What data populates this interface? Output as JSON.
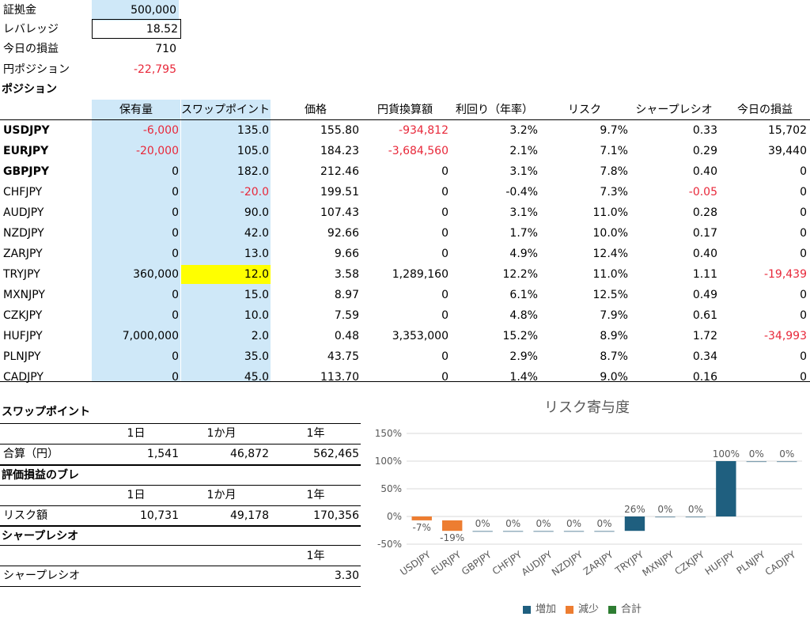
{
  "params": [
    {
      "label": "証拠金",
      "value": "500,000",
      "style": "blue"
    },
    {
      "label": "レバレッジ",
      "value": "18.52",
      "style": "box"
    },
    {
      "label": "今日の損益",
      "value": "710",
      "style": ""
    },
    {
      "label": "円ポジション",
      "value": "-22,795",
      "style": "red"
    }
  ],
  "position_title": "ポジション",
  "table": {
    "headers": [
      "保有量",
      "スワップポイント",
      "価格",
      "円貨換算額",
      "利回り（年率）",
      "リスク",
      "シャープレシオ",
      "今日の損益"
    ],
    "rows": [
      {
        "pair": "USDJPY",
        "bold": true,
        "qty": "-6,000",
        "qty_red": true,
        "swap": "135.0",
        "swap_red": false,
        "price": "155.80",
        "yen": "-934,812",
        "yen_red": true,
        "yield": "3.2%",
        "risk": "9.7%",
        "sharpe": "0.33",
        "sharpe_red": false,
        "pl": "15,702",
        "pl_red": false
      },
      {
        "pair": "EURJPY",
        "bold": true,
        "qty": "-20,000",
        "qty_red": true,
        "swap": "105.0",
        "swap_red": false,
        "price": "184.23",
        "yen": "-3,684,560",
        "yen_red": true,
        "yield": "2.1%",
        "risk": "7.1%",
        "sharpe": "0.29",
        "sharpe_red": false,
        "pl": "39,440",
        "pl_red": false
      },
      {
        "pair": "GBPJPY",
        "bold": true,
        "qty": "0",
        "qty_red": false,
        "swap": "182.0",
        "swap_red": false,
        "price": "212.46",
        "yen": "0",
        "yen_red": false,
        "yield": "3.1%",
        "risk": "7.8%",
        "sharpe": "0.40",
        "sharpe_red": false,
        "pl": "0",
        "pl_red": false
      },
      {
        "pair": "CHFJPY",
        "bold": false,
        "qty": "0",
        "qty_red": false,
        "swap": "-20.0",
        "swap_red": true,
        "price": "199.51",
        "yen": "0",
        "yen_red": false,
        "yield": "-0.4%",
        "risk": "7.3%",
        "sharpe": "-0.05",
        "sharpe_red": true,
        "pl": "0",
        "pl_red": false
      },
      {
        "pair": "AUDJPY",
        "bold": false,
        "qty": "0",
        "qty_red": false,
        "swap": "90.0",
        "swap_red": false,
        "price": "107.43",
        "yen": "0",
        "yen_red": false,
        "yield": "3.1%",
        "risk": "11.0%",
        "sharpe": "0.28",
        "sharpe_red": false,
        "pl": "0",
        "pl_red": false
      },
      {
        "pair": "NZDJPY",
        "bold": false,
        "qty": "0",
        "qty_red": false,
        "swap": "42.0",
        "swap_red": false,
        "price": "92.66",
        "yen": "0",
        "yen_red": false,
        "yield": "1.7%",
        "risk": "10.0%",
        "sharpe": "0.17",
        "sharpe_red": false,
        "pl": "0",
        "pl_red": false
      },
      {
        "pair": "ZARJPY",
        "bold": false,
        "qty": "0",
        "qty_red": false,
        "swap": "13.0",
        "swap_red": false,
        "price": "9.66",
        "yen": "0",
        "yen_red": false,
        "yield": "4.9%",
        "risk": "12.4%",
        "sharpe": "0.40",
        "sharpe_red": false,
        "pl": "0",
        "pl_red": false
      },
      {
        "pair": "TRYJPY",
        "bold": false,
        "qty": "360,000",
        "qty_red": false,
        "swap": "12.0",
        "swap_red": false,
        "swap_yellow": true,
        "price": "3.58",
        "yen": "1,289,160",
        "yen_red": false,
        "yield": "12.2%",
        "risk": "11.0%",
        "sharpe": "1.11",
        "sharpe_red": false,
        "pl": "-19,439",
        "pl_red": true
      },
      {
        "pair": "MXNJPY",
        "bold": false,
        "qty": "0",
        "qty_red": false,
        "swap": "15.0",
        "swap_red": false,
        "price": "8.97",
        "yen": "0",
        "yen_red": false,
        "yield": "6.1%",
        "risk": "12.5%",
        "sharpe": "0.49",
        "sharpe_red": false,
        "pl": "0",
        "pl_red": false
      },
      {
        "pair": "CZKJPY",
        "bold": false,
        "qty": "0",
        "qty_red": false,
        "swap": "10.0",
        "swap_red": false,
        "price": "7.59",
        "yen": "0",
        "yen_red": false,
        "yield": "4.8%",
        "risk": "7.9%",
        "sharpe": "0.61",
        "sharpe_red": false,
        "pl": "0",
        "pl_red": false
      },
      {
        "pair": "HUFJPY",
        "bold": false,
        "qty": "7,000,000",
        "qty_red": false,
        "swap": "2.0",
        "swap_red": false,
        "price": "0.48",
        "yen": "3,353,000",
        "yen_red": false,
        "yield": "15.2%",
        "risk": "8.9%",
        "sharpe": "1.72",
        "sharpe_red": false,
        "pl": "-34,993",
        "pl_red": true
      },
      {
        "pair": "PLNJPY",
        "bold": false,
        "qty": "0",
        "qty_red": false,
        "swap": "35.0",
        "swap_red": false,
        "price": "43.75",
        "yen": "0",
        "yen_red": false,
        "yield": "2.9%",
        "risk": "8.7%",
        "sharpe": "0.34",
        "sharpe_red": false,
        "pl": "0",
        "pl_red": false
      },
      {
        "pair": "CADJPY",
        "bold": false,
        "qty": "0",
        "qty_red": false,
        "swap": "45.0",
        "swap_red": false,
        "price": "113.70",
        "yen": "0",
        "yen_red": false,
        "yield": "1.4%",
        "risk": "9.0%",
        "sharpe": "0.16",
        "sharpe_red": false,
        "pl": "0",
        "pl_red": false
      }
    ]
  },
  "swap": {
    "title": "スワップポイント",
    "periods": [
      "1日",
      "1か月",
      "1年"
    ],
    "row_label": "合算（円）",
    "values": [
      "1,541",
      "46,872",
      "562,465"
    ]
  },
  "pl_swing": {
    "title": "評価損益のブレ",
    "periods": [
      "1日",
      "1か月",
      "1年"
    ],
    "row_label": "リスク額",
    "values": [
      "10,731",
      "49,178",
      "170,356"
    ]
  },
  "sharpe": {
    "title": "シャープレシオ",
    "period": "1年",
    "row_label": "シャープレシオ",
    "value": "3.30"
  },
  "chart_data": {
    "type": "bar",
    "title": "リスク寄与度",
    "categories": [
      "USDJPY",
      "EURJPY",
      "GBPJPY",
      "CHFJPY",
      "AUDJPY",
      "NZDJPY",
      "ZARJPY",
      "TRYJPY",
      "MXNJPY",
      "CZKJPY",
      "HUFJPY",
      "PLNJPY",
      "CADJPY"
    ],
    "values": [
      -7,
      -19,
      0,
      0,
      0,
      0,
      0,
      26,
      0,
      0,
      100,
      0,
      0
    ],
    "labels": [
      "-7%",
      "-19%",
      "0%",
      "0%",
      "0%",
      "0%",
      "0%",
      "26%",
      "0%",
      "0%",
      "100%",
      "0%",
      "0%"
    ],
    "waterfall": true,
    "ylim": [
      -50,
      150
    ],
    "yticks": [
      "150%",
      "100%",
      "50%",
      "0%",
      "-50%"
    ],
    "legend": [
      "増加",
      "減少",
      "合計"
    ],
    "colors": {
      "increase": "#1f5f7f",
      "decrease": "#ed7d31",
      "total": "#2e7d32"
    }
  }
}
